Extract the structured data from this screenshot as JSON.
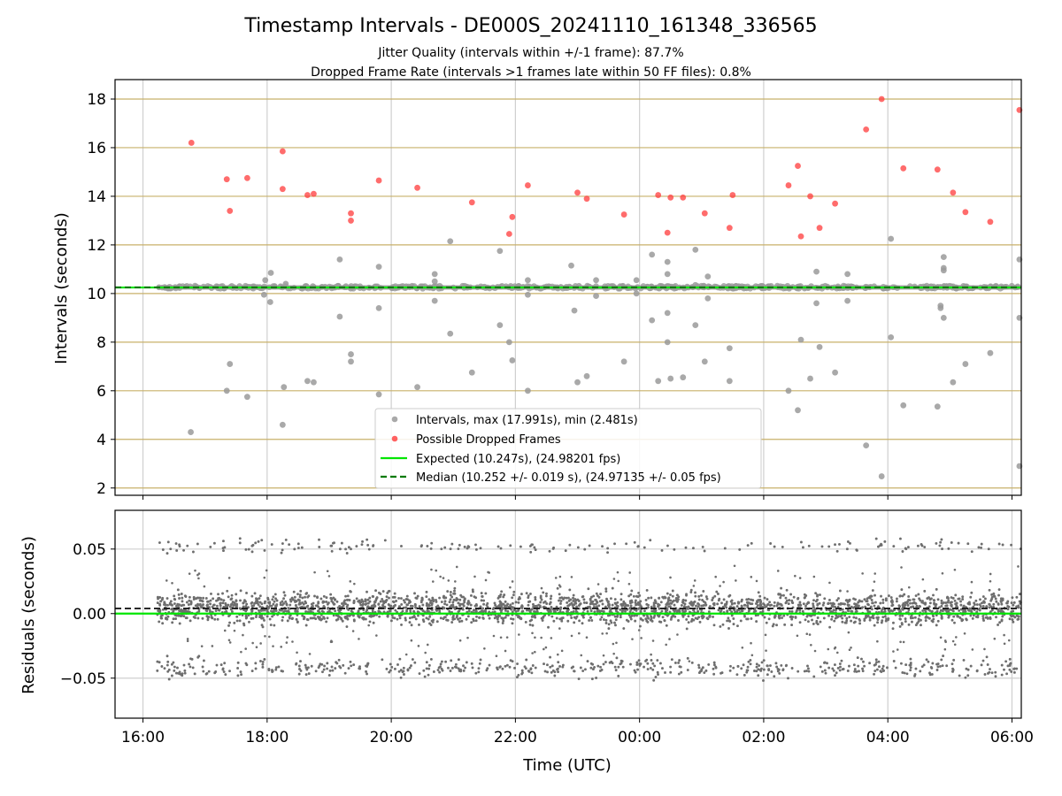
{
  "chart_data": [
    {
      "type": "scatter",
      "panel": "intervals",
      "title": "Timestamp Intervals - DE000S_20241110_161348_336565",
      "subtitle_lines": [
        "Jitter Quality (intervals within +/-1 frame): 87.7%",
        "Dropped Frame Rate (intervals >1 frames late within 50 FF files): 0.8%"
      ],
      "xlabel": "",
      "ylabel": "Intervals (seconds)",
      "ylim": [
        1.7,
        18.8
      ],
      "yticks": [
        2,
        4,
        6,
        8,
        10,
        12,
        14,
        16,
        18
      ],
      "grid": true,
      "legend_position": "bottom-center",
      "legend": [
        "Intervals, max (17.991s), min (2.481s)",
        "Possible Dropped Frames",
        "Expected (10.247s), (24.98201 fps)",
        "Median (10.252 +/- 0.019 s), (24.97135 +/- 0.05 fps)"
      ],
      "expected_interval": 10.247,
      "median_interval": 10.252,
      "baseline_start_hour": 16.23,
      "outliers_intervals": [
        [
          16.77,
          4.3
        ],
        [
          17.35,
          6.0
        ],
        [
          17.4,
          7.1
        ],
        [
          17.68,
          5.75
        ],
        [
          17.95,
          9.95
        ],
        [
          17.97,
          10.55
        ],
        [
          18.05,
          9.65
        ],
        [
          18.06,
          10.85
        ],
        [
          18.25,
          4.6
        ],
        [
          18.27,
          6.15
        ],
        [
          18.3,
          10.4
        ],
        [
          18.65,
          6.4
        ],
        [
          18.75,
          6.35
        ],
        [
          19.17,
          11.4
        ],
        [
          19.17,
          9.05
        ],
        [
          19.35,
          7.5
        ],
        [
          19.35,
          7.2
        ],
        [
          19.8,
          11.1
        ],
        [
          19.8,
          9.4
        ],
        [
          19.8,
          5.85
        ],
        [
          20.42,
          6.15
        ],
        [
          20.7,
          10.8
        ],
        [
          20.7,
          9.7
        ],
        [
          20.7,
          10.5
        ],
        [
          20.95,
          12.15
        ],
        [
          20.95,
          8.35
        ],
        [
          21.3,
          6.75
        ],
        [
          21.75,
          11.75
        ],
        [
          21.75,
          8.7
        ],
        [
          21.9,
          8.0
        ],
        [
          21.95,
          7.25
        ],
        [
          22.2,
          10.55
        ],
        [
          22.2,
          9.95
        ],
        [
          22.2,
          6.0
        ],
        [
          22.9,
          11.15
        ],
        [
          22.95,
          9.3
        ],
        [
          23.0,
          6.35
        ],
        [
          23.15,
          6.6
        ],
        [
          23.3,
          10.55
        ],
        [
          23.3,
          9.9
        ],
        [
          23.75,
          7.2
        ],
        [
          23.95,
          10.55
        ],
        [
          23.95,
          10.0
        ],
        [
          24.2,
          11.6
        ],
        [
          24.2,
          8.9
        ],
        [
          24.3,
          6.4
        ],
        [
          24.45,
          11.3
        ],
        [
          24.45,
          10.8
        ],
        [
          24.45,
          9.2
        ],
        [
          24.45,
          8.0
        ],
        [
          24.5,
          6.5
        ],
        [
          24.7,
          6.55
        ],
        [
          24.9,
          11.8
        ],
        [
          24.9,
          8.7
        ],
        [
          24.9,
          10.35
        ],
        [
          25.05,
          7.2
        ],
        [
          25.1,
          10.7
        ],
        [
          25.1,
          9.8
        ],
        [
          25.45,
          7.75
        ],
        [
          25.45,
          6.4
        ],
        [
          26.4,
          6.0
        ],
        [
          26.55,
          5.2
        ],
        [
          26.6,
          8.1
        ],
        [
          26.75,
          6.5
        ],
        [
          26.85,
          10.9
        ],
        [
          26.85,
          9.6
        ],
        [
          26.9,
          7.8
        ],
        [
          27.15,
          6.75
        ],
        [
          27.35,
          10.8
        ],
        [
          27.35,
          9.7
        ],
        [
          27.65,
          3.75
        ],
        [
          27.9,
          2.48
        ],
        [
          28.05,
          12.25
        ],
        [
          28.05,
          8.2
        ],
        [
          28.25,
          5.4
        ],
        [
          28.8,
          5.35
        ],
        [
          28.85,
          9.5
        ],
        [
          28.85,
          9.4
        ],
        [
          28.9,
          11.5
        ],
        [
          28.9,
          11.05
        ],
        [
          28.9,
          10.95
        ],
        [
          28.9,
          9.0
        ],
        [
          29.05,
          6.35
        ],
        [
          29.25,
          7.1
        ],
        [
          29.65,
          7.55
        ],
        [
          30.12,
          11.4
        ],
        [
          30.12,
          9.0
        ],
        [
          30.12,
          2.9
        ]
      ],
      "dropped_frames": [
        [
          16.78,
          16.2
        ],
        [
          17.35,
          14.7
        ],
        [
          17.4,
          13.4
        ],
        [
          17.68,
          14.75
        ],
        [
          18.25,
          15.85
        ],
        [
          18.25,
          14.3
        ],
        [
          18.65,
          14.05
        ],
        [
          18.75,
          14.1
        ],
        [
          19.35,
          13.3
        ],
        [
          19.35,
          13.0
        ],
        [
          19.8,
          14.65
        ],
        [
          20.42,
          14.35
        ],
        [
          21.3,
          13.75
        ],
        [
          21.9,
          12.45
        ],
        [
          21.95,
          13.15
        ],
        [
          22.2,
          14.45
        ],
        [
          23.0,
          14.15
        ],
        [
          23.15,
          13.9
        ],
        [
          23.75,
          13.25
        ],
        [
          24.3,
          14.05
        ],
        [
          24.45,
          12.5
        ],
        [
          24.5,
          13.95
        ],
        [
          24.7,
          13.95
        ],
        [
          25.05,
          13.3
        ],
        [
          25.45,
          12.7
        ],
        [
          25.5,
          14.05
        ],
        [
          26.4,
          14.45
        ],
        [
          26.55,
          15.25
        ],
        [
          26.6,
          12.35
        ],
        [
          26.75,
          14.0
        ],
        [
          26.9,
          12.7
        ],
        [
          27.15,
          13.7
        ],
        [
          27.65,
          16.75
        ],
        [
          27.9,
          18.0
        ],
        [
          28.25,
          15.15
        ],
        [
          28.8,
          15.1
        ],
        [
          29.05,
          14.15
        ],
        [
          29.25,
          13.35
        ],
        [
          29.65,
          12.95
        ],
        [
          30.12,
          17.55
        ]
      ]
    },
    {
      "type": "scatter",
      "panel": "residuals",
      "xlabel": "Time (UTC)",
      "ylabel": "Residuals (seconds)",
      "ylim": [
        -0.081,
        0.08
      ],
      "yticks": [
        0.05,
        0.0,
        -0.05
      ],
      "ytick_labels": [
        "0.05",
        "0.00",
        "−0.05"
      ],
      "xlim_hours": [
        15.55,
        30.15
      ],
      "xticks": [
        "16:00",
        "18:00",
        "20:00",
        "22:00",
        "00:00",
        "02:00",
        "04:00",
        "06:00"
      ],
      "grid": true,
      "expected_residual": 0.0,
      "median_residual": 0.004,
      "residual_range": [
        -0.057,
        0.069
      ]
    }
  ],
  "colors": {
    "interval_points": "#9a9a9a",
    "dropped_points": "#ff3b3b",
    "expected_line": "#00e600",
    "median_line": "#007a00",
    "horizontal_grid_top": "#c8b06a",
    "grid": "#cfcfcf",
    "residual_points": "#6e6e6e"
  }
}
